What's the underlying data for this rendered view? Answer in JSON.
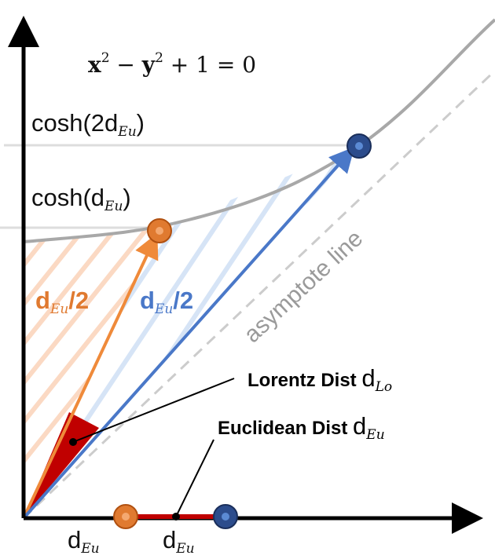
{
  "equation": {
    "base1": "x",
    "exp1": "2",
    "middle": " − ",
    "base2": "y",
    "exp2": "2",
    "tail": " + 1 = 0"
  },
  "labels": {
    "cosh_2d": {
      "text": "cosh(2d",
      "subscript": "Eu",
      "tail": ")"
    },
    "cosh_d": {
      "text": "cosh(d",
      "subscript": "Eu",
      "tail": ")"
    },
    "orange_arrow": {
      "text": "d",
      "subscript": "Eu",
      "tail": "/2"
    },
    "blue_arrow": {
      "text": "d",
      "subscript": "Eu",
      "tail": "/2"
    },
    "asymptote": "asymptote line",
    "lorentz": {
      "text": "Lorentz Dist ",
      "symbol": "d",
      "subscript": "Lo"
    },
    "euclidean": {
      "text": "Euclidean Dist ",
      "symbol": "d",
      "subscript": "Eu"
    },
    "axis_left": {
      "text": "d",
      "subscript": "Eu"
    },
    "axis_right": {
      "text": "d",
      "subscript": "Eu"
    }
  }
}
